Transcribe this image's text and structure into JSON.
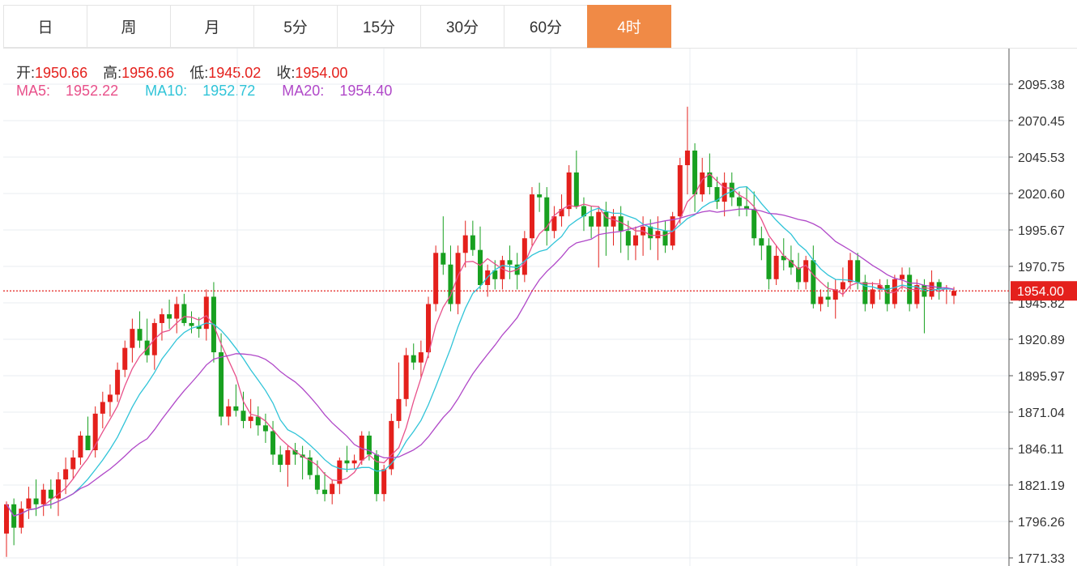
{
  "tabs": [
    "日",
    "周",
    "月",
    "5分",
    "15分",
    "30分",
    "60分",
    "4时"
  ],
  "active_tab": "4时",
  "ohlc": {
    "open_label": "开:",
    "open": "1950.66",
    "high_label": "高:",
    "high": "1956.66",
    "low_label": "低:",
    "low": "1945.02",
    "close_label": "收:",
    "close": "1954.00"
  },
  "ma": {
    "ma5_label": "MA5:",
    "ma5": "1952.22",
    "ma10_label": "MA10:",
    "ma10": "1952.72",
    "ma20_label": "MA20:",
    "ma20": "1954.40"
  },
  "colors": {
    "up": "#e4201c",
    "down": "#18a020",
    "ma5": "#e8508a",
    "ma10": "#30c4d8",
    "ma20": "#b048c8",
    "price_line": "#e4201c",
    "tab_active": "#f08a46"
  },
  "chart_data": {
    "type": "candlestick",
    "y_ticks": [
      "2095.38",
      "2070.45",
      "2045.53",
      "2020.60",
      "1995.67",
      "1970.75",
      "1945.82",
      "1920.89",
      "1895.97",
      "1871.04",
      "1846.11",
      "1821.19",
      "1796.26",
      "1771.33"
    ],
    "ylim": [
      1771.33,
      2095.38
    ],
    "current_price": "1954.00",
    "grid": true,
    "candles": [
      [
        1788,
        1810,
        1772,
        1808
      ],
      [
        1808,
        1812,
        1780,
        1792
      ],
      [
        1792,
        1810,
        1788,
        1805
      ],
      [
        1805,
        1820,
        1798,
        1812
      ],
      [
        1812,
        1825,
        1800,
        1808
      ],
      [
        1808,
        1822,
        1800,
        1818
      ],
      [
        1818,
        1825,
        1805,
        1812
      ],
      [
        1812,
        1830,
        1800,
        1825
      ],
      [
        1825,
        1840,
        1815,
        1832
      ],
      [
        1832,
        1845,
        1825,
        1840
      ],
      [
        1840,
        1858,
        1835,
        1855
      ],
      [
        1855,
        1868,
        1848,
        1845
      ],
      [
        1845,
        1875,
        1840,
        1870
      ],
      [
        1870,
        1885,
        1860,
        1878
      ],
      [
        1878,
        1890,
        1868,
        1883
      ],
      [
        1883,
        1905,
        1878,
        1900
      ],
      [
        1900,
        1920,
        1895,
        1915
      ],
      [
        1915,
        1935,
        1905,
        1928
      ],
      [
        1928,
        1940,
        1915,
        1920
      ],
      [
        1920,
        1935,
        1905,
        1910
      ],
      [
        1910,
        1935,
        1900,
        1932
      ],
      [
        1932,
        1942,
        1920,
        1938
      ],
      [
        1938,
        1948,
        1928,
        1935
      ],
      [
        1935,
        1950,
        1925,
        1945
      ],
      [
        1945,
        1952,
        1930,
        1932
      ],
      [
        1932,
        1940,
        1925,
        1930
      ],
      [
        1930,
        1936,
        1922,
        1928
      ],
      [
        1928,
        1955,
        1920,
        1950
      ],
      [
        1950,
        1960,
        1905,
        1912
      ],
      [
        1912,
        1925,
        1862,
        1868
      ],
      [
        1868,
        1880,
        1862,
        1875
      ],
      [
        1875,
        1890,
        1868,
        1872
      ],
      [
        1872,
        1885,
        1860,
        1865
      ],
      [
        1865,
        1880,
        1860,
        1868
      ],
      [
        1868,
        1875,
        1855,
        1862
      ],
      [
        1862,
        1870,
        1850,
        1858
      ],
      [
        1858,
        1865,
        1835,
        1842
      ],
      [
        1842,
        1848,
        1830,
        1835
      ],
      [
        1835,
        1848,
        1820,
        1845
      ],
      [
        1845,
        1850,
        1835,
        1842
      ],
      [
        1842,
        1848,
        1825,
        1840
      ],
      [
        1840,
        1845,
        1825,
        1828
      ],
      [
        1828,
        1838,
        1815,
        1818
      ],
      [
        1818,
        1830,
        1810,
        1815
      ],
      [
        1815,
        1825,
        1808,
        1822
      ],
      [
        1822,
        1840,
        1815,
        1838
      ],
      [
        1838,
        1848,
        1830,
        1836
      ],
      [
        1836,
        1842,
        1832,
        1838
      ],
      [
        1838,
        1858,
        1835,
        1855
      ],
      [
        1855,
        1858,
        1838,
        1842
      ],
      [
        1842,
        1845,
        1810,
        1815
      ],
      [
        1815,
        1835,
        1810,
        1832
      ],
      [
        1832,
        1870,
        1828,
        1865
      ],
      [
        1865,
        1905,
        1860,
        1880
      ],
      [
        1880,
        1915,
        1875,
        1910
      ],
      [
        1910,
        1918,
        1900,
        1905
      ],
      [
        1905,
        1920,
        1895,
        1912
      ],
      [
        1912,
        1950,
        1908,
        1945
      ],
      [
        1945,
        1985,
        1940,
        1980
      ],
      [
        1980,
        2005,
        1965,
        1972
      ],
      [
        1972,
        1985,
        1940,
        1945
      ],
      [
        1945,
        1985,
        1938,
        1980
      ],
      [
        1980,
        2002,
        1970,
        1992
      ],
      [
        1992,
        2002,
        1978,
        1982
      ],
      [
        1982,
        1998,
        1955,
        1958
      ],
      [
        1958,
        1972,
        1950,
        1968
      ],
      [
        1968,
        1975,
        1955,
        1962
      ],
      [
        1962,
        1978,
        1955,
        1975
      ],
      [
        1975,
        1985,
        1962,
        1972
      ],
      [
        1972,
        1980,
        1955,
        1965
      ],
      [
        1965,
        1995,
        1960,
        1990
      ],
      [
        1990,
        2025,
        1985,
        2020
      ],
      [
        2020,
        2028,
        2008,
        2018
      ],
      [
        2018,
        2025,
        1985,
        1995
      ],
      [
        1995,
        2012,
        1990,
        2005
      ],
      [
        2005,
        2020,
        1998,
        2010
      ],
      [
        2010,
        2040,
        2005,
        2035
      ],
      [
        2035,
        2050,
        2010,
        2012
      ],
      [
        2012,
        2018,
        1995,
        2005
      ],
      [
        2005,
        2012,
        1990,
        1998
      ],
      [
        1998,
        2012,
        1970,
        2008
      ],
      [
        2008,
        2015,
        1978,
        1998
      ],
      [
        1998,
        2010,
        1985,
        2005
      ],
      [
        2005,
        2012,
        1980,
        1995
      ],
      [
        1995,
        2002,
        1975,
        1985
      ],
      [
        1985,
        1998,
        1975,
        1992
      ],
      [
        1992,
        2005,
        1978,
        1998
      ],
      [
        1998,
        2003,
        1982,
        1990
      ],
      [
        1990,
        2005,
        1975,
        1995
      ],
      [
        1995,
        2002,
        1980,
        1985
      ],
      [
        1985,
        2008,
        1982,
        2005
      ],
      [
        2005,
        2045,
        2000,
        2040
      ],
      [
        2040,
        2080,
        2020,
        2050
      ],
      [
        2050,
        2055,
        2008,
        2020
      ],
      [
        2020,
        2045,
        2015,
        2035
      ],
      [
        2035,
        2048,
        2020,
        2025
      ],
      [
        2025,
        2032,
        2010,
        2015
      ],
      [
        2015,
        2035,
        2005,
        2028
      ],
      [
        2028,
        2035,
        2012,
        2018
      ],
      [
        2018,
        2022,
        2005,
        2012
      ],
      [
        2012,
        2025,
        2005,
        2010
      ],
      [
        2010,
        2022,
        1985,
        1990
      ],
      [
        1990,
        1998,
        1975,
        1985
      ],
      [
        1985,
        1990,
        1955,
        1962
      ],
      [
        1962,
        1985,
        1958,
        1978
      ],
      [
        1978,
        1990,
        1968,
        1975
      ],
      [
        1975,
        1985,
        1965,
        1970
      ],
      [
        1970,
        1980,
        1955,
        1960
      ],
      [
        1960,
        1978,
        1955,
        1975
      ],
      [
        1975,
        1985,
        1942,
        1945
      ],
      [
        1945,
        1955,
        1940,
        1950
      ],
      [
        1950,
        1960,
        1943,
        1948
      ],
      [
        1948,
        1962,
        1935,
        1955
      ],
      [
        1955,
        1970,
        1950,
        1960
      ],
      [
        1960,
        1980,
        1955,
        1975
      ],
      [
        1975,
        1980,
        1955,
        1960
      ],
      [
        1960,
        1965,
        1940,
        1945
      ],
      [
        1945,
        1960,
        1942,
        1955
      ],
      [
        1955,
        1962,
        1948,
        1958
      ],
      [
        1958,
        1962,
        1940,
        1945
      ],
      [
        1945,
        1965,
        1942,
        1962
      ],
      [
        1962,
        1970,
        1955,
        1965
      ],
      [
        1965,
        1970,
        1940,
        1945
      ],
      [
        1945,
        1962,
        1942,
        1958
      ],
      [
        1958,
        1962,
        1925,
        1950
      ],
      [
        1950,
        1968,
        1948,
        1960
      ],
      [
        1960,
        1962,
        1948,
        1955
      ],
      [
        1955,
        1958,
        1945,
        1956
      ],
      [
        1950.66,
        1956.66,
        1945.02,
        1954
      ]
    ]
  }
}
